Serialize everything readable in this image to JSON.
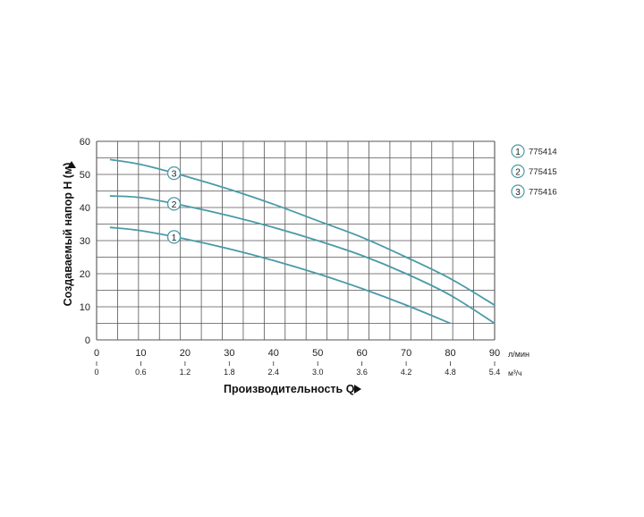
{
  "chart_data": {
    "type": "line",
    "ylabel": "Создаваемый напор H (м)",
    "xlabel": "Производительность Q",
    "x_unit_primary": "л/мин",
    "x_unit_secondary": "м³/ч",
    "xlim": [
      0,
      90
    ],
    "ylim": [
      0,
      60
    ],
    "grid": true,
    "legend_position": "right",
    "x_ticks": [
      "0",
      "10",
      "20",
      "30",
      "40",
      "50",
      "60",
      "70",
      "80",
      "90"
    ],
    "x_ticks_secondary": [
      "0",
      "0.6",
      "1.2",
      "1.8",
      "2.4",
      "3.0",
      "3.6",
      "4.2",
      "4.8",
      "5.4"
    ],
    "y_ticks": [
      "0",
      "10",
      "20",
      "30",
      "40",
      "50",
      "60"
    ],
    "series": [
      {
        "name": "775414",
        "marker": "1",
        "x": [
          3,
          10,
          20,
          30,
          40,
          50,
          60,
          70,
          80
        ],
        "y": [
          34,
          33,
          30.5,
          27.5,
          24,
          20,
          15.5,
          10.5,
          5
        ]
      },
      {
        "name": "775415",
        "marker": "2",
        "x": [
          3,
          10,
          20,
          30,
          40,
          50,
          60,
          70,
          80,
          90
        ],
        "y": [
          43.5,
          43,
          40.5,
          37.5,
          34,
          30,
          25.5,
          20,
          13.5,
          5
        ]
      },
      {
        "name": "775416",
        "marker": "3",
        "x": [
          3,
          10,
          20,
          30,
          40,
          50,
          60,
          70,
          80,
          90
        ],
        "y": [
          54.5,
          53,
          49.5,
          45.5,
          41,
          36,
          31,
          25,
          18.5,
          10.5
        ]
      }
    ],
    "colors": {
      "line": "#4a9aa8",
      "grid": "#555555",
      "marker_fill": "#ffffff"
    }
  }
}
